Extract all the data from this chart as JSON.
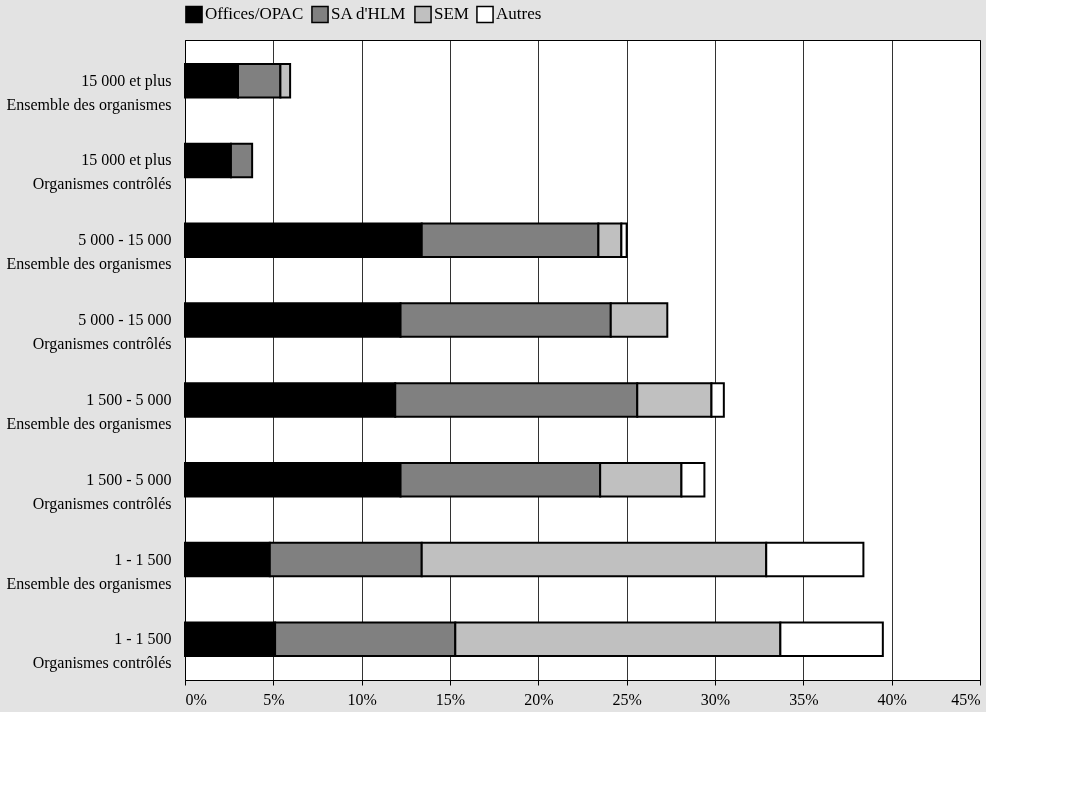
{
  "chart_data": {
    "type": "bar",
    "orientation": "horizontal",
    "stacked": true,
    "categories": [
      "15 000 et plus\nEnsemble des organismes",
      "15 000 et plus\nOrganismes contrôlés",
      "5 000 - 15 000\nEnsemble des organismes",
      "5 000 - 15 000\nOrganismes contrôlés",
      "1 500 - 5 000\nEnsemble des organismes",
      "1 500 - 5 000\nOrganismes contrôlés",
      "1 - 1 500\nEnsemble des organismes",
      "1 - 1 500\nOrganismes contrôlés"
    ],
    "series": [
      {
        "name": "Offices/OPAC",
        "color": "#000000",
        "values": [
          3.0,
          2.6,
          13.4,
          12.2,
          11.9,
          12.2,
          4.8,
          5.1
        ]
      },
      {
        "name": "SA d'HLM",
        "color": "#808080",
        "values": [
          2.4,
          1.2,
          10.0,
          11.9,
          13.7,
          11.3,
          8.6,
          10.2
        ]
      },
      {
        "name": "SEM",
        "color": "#c0c0c0",
        "values": [
          0.55,
          null,
          1.3,
          3.2,
          4.2,
          4.6,
          19.5,
          18.4
        ]
      },
      {
        "name": "Autres",
        "color": "#ffffff",
        "values": [
          null,
          null,
          0.3,
          null,
          0.7,
          1.3,
          5.5,
          5.8
        ]
      }
    ],
    "xlim": [
      0,
      45
    ],
    "xticks": [
      {
        "value": 0,
        "label": "0%"
      },
      {
        "value": 5,
        "label": "5%"
      },
      {
        "value": 10,
        "label": "10%"
      },
      {
        "value": 15,
        "label": "15%"
      },
      {
        "value": 20,
        "label": "20%"
      },
      {
        "value": 25,
        "label": "25%"
      },
      {
        "value": 30,
        "label": "30%"
      },
      {
        "value": 35,
        "label": "35%"
      },
      {
        "value": 40,
        "label": "40%"
      },
      {
        "value": 45,
        "label": "45%"
      }
    ],
    "grid": "x",
    "legend": "top"
  }
}
